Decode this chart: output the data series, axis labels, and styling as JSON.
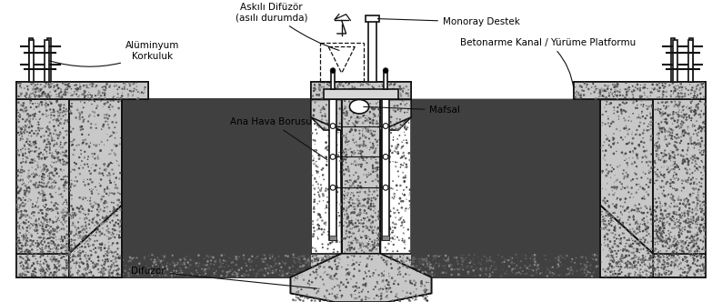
{
  "bg_color": "#ffffff",
  "dark_fill": "#404040",
  "concrete_color": "#c8c8c8",
  "line_color": "#111111",
  "lw": 1.2,
  "labels": {
    "askili_difuzor": "Askılı Difüzör\n(asılı durumda)",
    "monoray_destek": "Monoray Destek",
    "betonarme_kanal": "Betonarme Kanal / Yürüme Platformu",
    "aluminyum_korkuluk": "Alüminyum\nKorkuluk",
    "mafsal": "Mafsal",
    "ana_hava_borusu": "Ana Hava Borusu",
    "difuzor": "Difüzör"
  }
}
